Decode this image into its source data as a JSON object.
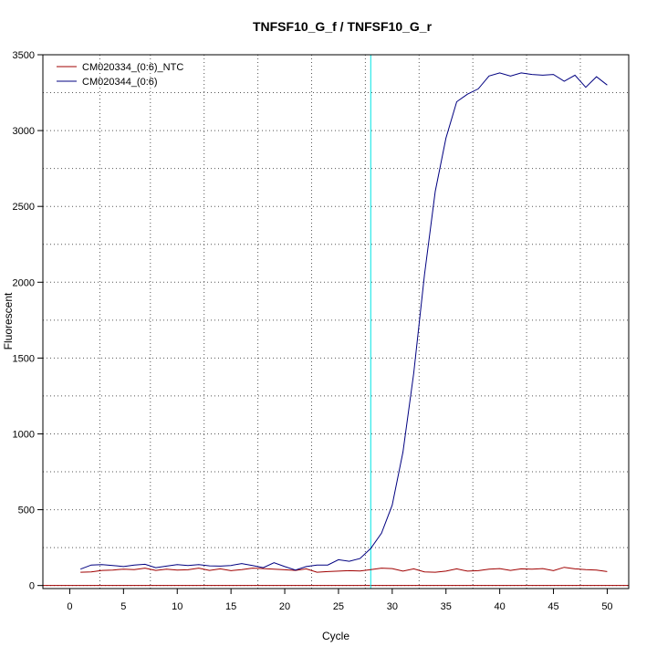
{
  "chart_data": {
    "type": "line",
    "title": "TNFSF10_G_f / TNFSF10_G_r",
    "xlabel": "Cycle",
    "ylabel": "Fluorescent",
    "xlim": [
      -2.5,
      52
    ],
    "ylim": [
      -20,
      3500
    ],
    "xticks": [
      0,
      5,
      10,
      15,
      20,
      25,
      30,
      35,
      40,
      45,
      50
    ],
    "yticks": [
      0,
      500,
      1000,
      1500,
      2000,
      2500,
      3000,
      3500
    ],
    "x_grid": [
      2.8,
      7.5,
      12.5,
      17.5,
      22.5,
      27.5,
      32.5,
      37.5,
      42.5,
      47.5
    ],
    "y_grid": [
      0,
      500,
      1000,
      1500,
      2000,
      2500,
      3000,
      3500,
      250,
      750,
      1250,
      1750,
      2250,
      2750,
      3250
    ],
    "threshold_x": 28,
    "threshold_color": "#00e5e5",
    "baseline_y": 0,
    "baseline_color": "#a00000",
    "legend_position": "top-left",
    "x": [
      1,
      2,
      3,
      4,
      5,
      6,
      7,
      8,
      9,
      10,
      11,
      12,
      13,
      14,
      15,
      16,
      17,
      18,
      19,
      20,
      21,
      22,
      23,
      24,
      25,
      26,
      27,
      28,
      29,
      30,
      31,
      32,
      33,
      34,
      35,
      36,
      37,
      38,
      39,
      40,
      41,
      42,
      43,
      44,
      45,
      46,
      47,
      48,
      49,
      50
    ],
    "series": [
      {
        "name": "CM020334_(0:6)_NTC",
        "color": "#a00000",
        "values": [
          88,
          90,
          100,
          102,
          108,
          105,
          115,
          100,
          108,
          102,
          104,
          115,
          100,
          110,
          98,
          105,
          115,
          112,
          108,
          104,
          100,
          110,
          88,
          92,
          95,
          98,
          96,
          105,
          115,
          112,
          95,
          110,
          90,
          88,
          95,
          110,
          95,
          98,
          108,
          112,
          100,
          110,
          108,
          112,
          98,
          120,
          110,
          105,
          102,
          92
        ]
      },
      {
        "name": "CM020344_(0:6)",
        "color": "#000080",
        "values": [
          108,
          135,
          138,
          132,
          125,
          135,
          140,
          118,
          128,
          138,
          132,
          138,
          130,
          128,
          132,
          145,
          132,
          118,
          150,
          125,
          102,
          125,
          135,
          135,
          170,
          160,
          178,
          245,
          345,
          530,
          880,
          1400,
          2050,
          2600,
          2950,
          3190,
          3240,
          3275,
          3360,
          3380,
          3360,
          3380,
          3370,
          3365,
          3370,
          3325,
          3365,
          3285,
          3355,
          3300
        ]
      }
    ]
  }
}
